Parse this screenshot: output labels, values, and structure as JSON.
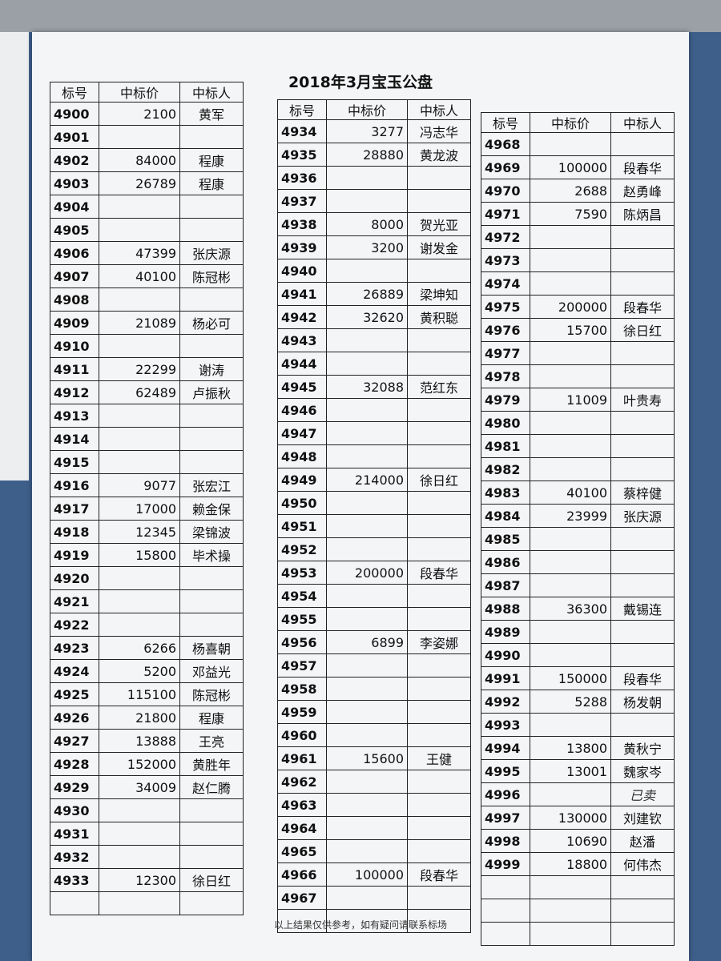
{
  "title": "2018年3月宝玉公盘",
  "headers": [
    "标号",
    "中标价",
    "中标人"
  ],
  "tables": [
    {
      "rows": [
        [
          4900,
          2100,
          "黄军"
        ],
        [
          4901,
          null,
          null
        ],
        [
          4902,
          84000,
          "程康"
        ],
        [
          4903,
          26789,
          "程康"
        ],
        [
          4904,
          null,
          null
        ],
        [
          4905,
          null,
          null
        ],
        [
          4906,
          47399,
          "张庆源"
        ],
        [
          4907,
          40100,
          "陈冠彬"
        ],
        [
          4908,
          null,
          null
        ],
        [
          4909,
          21089,
          "杨必可"
        ],
        [
          4910,
          null,
          null
        ],
        [
          4911,
          22299,
          "谢涛"
        ],
        [
          4912,
          62489,
          "卢振秋"
        ],
        [
          4913,
          null,
          null
        ],
        [
          4914,
          null,
          null
        ],
        [
          4915,
          null,
          null
        ],
        [
          4916,
          9077,
          "张宏江"
        ],
        [
          4917,
          17000,
          "赖金保"
        ],
        [
          4918,
          12345,
          "梁锦波"
        ],
        [
          4919,
          15800,
          "毕术操"
        ],
        [
          4920,
          null,
          null
        ],
        [
          4921,
          null,
          null
        ],
        [
          4922,
          null,
          null
        ],
        [
          4923,
          6266,
          "杨喜朝"
        ],
        [
          4924,
          5200,
          "邓益光"
        ],
        [
          4925,
          115100,
          "陈冠彬"
        ],
        [
          4926,
          21800,
          "程康"
        ],
        [
          4927,
          13888,
          "王亮"
        ],
        [
          4928,
          152000,
          "黄胜年"
        ],
        [
          4929,
          34009,
          "赵仁腾"
        ],
        [
          4930,
          null,
          null
        ],
        [
          4931,
          null,
          null
        ],
        [
          4932,
          null,
          null
        ],
        [
          4933,
          12300,
          "徐日红"
        ]
      ]
    },
    {
      "rows": [
        [
          4934,
          3277,
          "冯志华"
        ],
        [
          4935,
          28880,
          "黄龙波"
        ],
        [
          4936,
          null,
          null
        ],
        [
          4937,
          null,
          null
        ],
        [
          4938,
          8000,
          "贺光亚"
        ],
        [
          4939,
          3200,
          "谢发金"
        ],
        [
          4940,
          null,
          null
        ],
        [
          4941,
          26889,
          "梁坤知"
        ],
        [
          4942,
          32620,
          "黄积聪"
        ],
        [
          4943,
          null,
          null
        ],
        [
          4944,
          null,
          null
        ],
        [
          4945,
          32088,
          "范红东"
        ],
        [
          4946,
          null,
          null
        ],
        [
          4947,
          null,
          null
        ],
        [
          4948,
          null,
          null
        ],
        [
          4949,
          214000,
          "徐日红"
        ],
        [
          4950,
          null,
          null
        ],
        [
          4951,
          null,
          null
        ],
        [
          4952,
          null,
          null
        ],
        [
          4953,
          200000,
          "段春华"
        ],
        [
          4954,
          null,
          null
        ],
        [
          4955,
          null,
          null
        ],
        [
          4956,
          6899,
          "李姿娜"
        ],
        [
          4957,
          null,
          null
        ],
        [
          4958,
          null,
          null
        ],
        [
          4959,
          null,
          null
        ],
        [
          4960,
          null,
          null
        ],
        [
          4961,
          15600,
          "王健"
        ],
        [
          4962,
          null,
          null
        ],
        [
          4963,
          null,
          null
        ],
        [
          4964,
          null,
          null
        ],
        [
          4965,
          null,
          null
        ],
        [
          4966,
          100000,
          "段春华"
        ],
        [
          4967,
          null,
          null
        ]
      ]
    },
    {
      "rows": [
        [
          4968,
          null,
          null
        ],
        [
          4969,
          100000,
          "段春华"
        ],
        [
          4970,
          2688,
          "赵勇峰"
        ],
        [
          4971,
          7590,
          "陈炳昌"
        ],
        [
          4972,
          null,
          null
        ],
        [
          4973,
          null,
          null
        ],
        [
          4974,
          null,
          null
        ],
        [
          4975,
          200000,
          "段春华"
        ],
        [
          4976,
          15700,
          "徐日红"
        ],
        [
          4977,
          null,
          null
        ],
        [
          4978,
          null,
          null
        ],
        [
          4979,
          11009,
          "叶贵寿"
        ],
        [
          4980,
          null,
          null
        ],
        [
          4981,
          null,
          null
        ],
        [
          4982,
          null,
          null
        ],
        [
          4983,
          40100,
          "蔡梓健"
        ],
        [
          4984,
          23999,
          "张庆源"
        ],
        [
          4985,
          null,
          null
        ],
        [
          4986,
          null,
          null
        ],
        [
          4987,
          null,
          null
        ],
        [
          4988,
          36300,
          "戴锡连"
        ],
        [
          4989,
          null,
          null
        ],
        [
          4990,
          null,
          null
        ],
        [
          4991,
          150000,
          "段春华"
        ],
        [
          4992,
          5288,
          "杨发朝"
        ],
        [
          4993,
          null,
          null
        ],
        [
          4994,
          13800,
          "黄秋宁"
        ],
        [
          4995,
          13001,
          "魏家岑"
        ],
        [
          4996,
          null,
          "已卖"
        ],
        [
          4997,
          130000,
          "刘建钦"
        ],
        [
          4998,
          10690,
          "赵潘"
        ],
        [
          4999,
          18800,
          "何伟杰"
        ]
      ]
    }
  ],
  "footer": "以上结果仅供参考，如有疑问请联系标场"
}
